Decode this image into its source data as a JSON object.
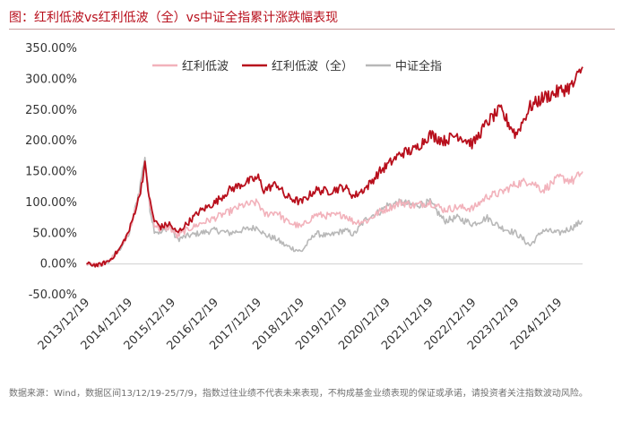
{
  "title": "图：红利低波vs红利低波（全）vs中证全指累计涨跌幅表现",
  "source_note": "数据来源：Wind，数据区间13/12/19-25/7/9，指数过往业绩不代表未来表现，不构成基金业绩表现的保证或承诺，请投资者关注指数波动风险。",
  "colors": {
    "title": "#b80f1c",
    "series_light": "#f2b2bb",
    "series_dark": "#b80f1c",
    "series_gray": "#b8b8b8"
  },
  "chart_data": {
    "type": "line",
    "title": "",
    "xlabel": "",
    "ylabel": "",
    "ylim": [
      -50,
      350
    ],
    "yticks": [
      "-50.00%",
      "0.00%",
      "50.00%",
      "100.00%",
      "150.00%",
      "200.00%",
      "250.00%",
      "300.00%",
      "350.00%"
    ],
    "ytick_values": [
      -50,
      0,
      50,
      100,
      150,
      200,
      250,
      300,
      350
    ],
    "xticks": [
      "2013/12/19",
      "2014/12/19",
      "2015/12/19",
      "2016/12/19",
      "2017/12/19",
      "2018/12/19",
      "2019/12/19",
      "2020/12/19",
      "2021/12/19",
      "2022/12/19",
      "2023/12/19",
      "2024/12/19"
    ],
    "xlim": [
      2013.96,
      2025.52
    ],
    "grid": false,
    "legend_position": "top-center",
    "series": [
      {
        "name": "红利低波",
        "color": "#f2b2bb",
        "x": [
          2013.97,
          2014.25,
          2014.5,
          2014.75,
          2014.97,
          2015.2,
          2015.33,
          2015.45,
          2015.55,
          2015.7,
          2015.9,
          2016.08,
          2016.3,
          2016.6,
          2016.97,
          2017.3,
          2017.6,
          2017.97,
          2018.1,
          2018.4,
          2018.6,
          2018.97,
          2019.3,
          2019.6,
          2019.97,
          2020.2,
          2020.5,
          2020.8,
          2020.97,
          2021.3,
          2021.6,
          2021.97,
          2022.3,
          2022.6,
          2022.97,
          2023.3,
          2023.6,
          2023.97,
          2024.3,
          2024.6,
          2024.97,
          2025.3,
          2025.52
        ],
        "y": [
          0,
          -2,
          5,
          25,
          55,
          110,
          160,
          95,
          65,
          55,
          60,
          45,
          55,
          65,
          75,
          85,
          95,
          100,
          80,
          85,
          70,
          60,
          80,
          78,
          80,
          68,
          70,
          85,
          90,
          100,
          95,
          100,
          88,
          92,
          90,
          110,
          115,
          130,
          135,
          120,
          140,
          135,
          150
        ]
      },
      {
        "name": "红利低波（全）",
        "color": "#b80f1c",
        "x": [
          2013.97,
          2014.25,
          2014.5,
          2014.75,
          2014.97,
          2015.2,
          2015.33,
          2015.45,
          2015.55,
          2015.7,
          2015.9,
          2016.08,
          2016.3,
          2016.6,
          2016.97,
          2017.3,
          2017.6,
          2017.97,
          2018.1,
          2018.4,
          2018.6,
          2018.97,
          2019.3,
          2019.6,
          2019.97,
          2020.2,
          2020.5,
          2020.8,
          2020.97,
          2021.3,
          2021.6,
          2021.97,
          2022.3,
          2022.6,
          2022.97,
          2023.3,
          2023.6,
          2023.97,
          2024.3,
          2024.6,
          2024.97,
          2025.3,
          2025.52
        ],
        "y": [
          0,
          -2,
          5,
          25,
          55,
          110,
          160,
          100,
          70,
          60,
          65,
          50,
          65,
          85,
          100,
          120,
          130,
          140,
          120,
          130,
          110,
          100,
          120,
          118,
          125,
          110,
          125,
          150,
          160,
          180,
          185,
          210,
          200,
          210,
          195,
          230,
          250,
          210,
          255,
          270,
          280,
          290,
          320
        ]
      },
      {
        "name": "中证全指",
        "color": "#b8b8b8",
        "x": [
          2013.97,
          2014.25,
          2014.5,
          2014.75,
          2014.97,
          2015.2,
          2015.33,
          2015.45,
          2015.55,
          2015.7,
          2015.9,
          2016.08,
          2016.3,
          2016.6,
          2016.97,
          2017.3,
          2017.6,
          2017.97,
          2018.1,
          2018.4,
          2018.6,
          2018.97,
          2019.3,
          2019.6,
          2019.97,
          2020.2,
          2020.5,
          2020.8,
          2020.97,
          2021.3,
          2021.6,
          2021.97,
          2022.3,
          2022.6,
          2022.97,
          2023.3,
          2023.6,
          2023.97,
          2024.3,
          2024.6,
          2024.97,
          2025.3,
          2025.52
        ],
        "y": [
          0,
          -3,
          5,
          25,
          50,
          120,
          175,
          90,
          55,
          50,
          62,
          40,
          45,
          50,
          55,
          50,
          55,
          60,
          48,
          40,
          30,
          20,
          50,
          45,
          55,
          48,
          75,
          85,
          95,
          100,
          95,
          100,
          70,
          75,
          65,
          75,
          60,
          50,
          30,
          55,
          50,
          60,
          70
        ]
      }
    ]
  }
}
